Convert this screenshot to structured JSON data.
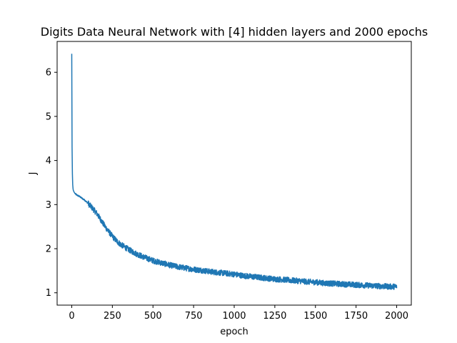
{
  "chart_data": {
    "type": "line",
    "title": "Digits Data Neural Network with [4] hidden layers and 2000 epochs",
    "xlabel": "epoch",
    "ylabel": "J",
    "xlim": [
      -90,
      2090
    ],
    "ylim": [
      0.72,
      6.7
    ],
    "xticks": [
      0,
      250,
      500,
      750,
      1000,
      1250,
      1500,
      1750,
      2000
    ],
    "yticks": [
      1,
      2,
      3,
      4,
      5,
      6
    ],
    "grid": false,
    "legend": "none",
    "line_color": "#1f77b4",
    "series": [
      {
        "x": [
          0,
          2,
          4,
          6,
          8,
          10,
          15,
          20,
          30,
          40,
          50,
          60,
          80,
          100,
          120,
          150,
          175,
          200,
          225,
          250,
          275,
          300,
          350,
          400,
          450,
          500,
          550,
          600,
          650,
          700,
          750,
          800,
          850,
          900,
          950,
          1000,
          1050,
          1100,
          1150,
          1200,
          1250,
          1300,
          1350,
          1400,
          1450,
          1500,
          1550,
          1600,
          1650,
          1700,
          1750,
          1800,
          1850,
          1900,
          1950,
          2000
        ],
        "values": [
          6.42,
          4.3,
          3.7,
          3.45,
          3.36,
          3.32,
          3.28,
          3.25,
          3.22,
          3.2,
          3.18,
          3.15,
          3.1,
          3.03,
          2.95,
          2.82,
          2.68,
          2.53,
          2.4,
          2.28,
          2.18,
          2.1,
          1.98,
          1.88,
          1.8,
          1.73,
          1.68,
          1.63,
          1.59,
          1.56,
          1.53,
          1.51,
          1.48,
          1.46,
          1.44,
          1.42,
          1.39,
          1.37,
          1.35,
          1.33,
          1.31,
          1.3,
          1.28,
          1.27,
          1.25,
          1.24,
          1.22,
          1.21,
          1.2,
          1.19,
          1.18,
          1.17,
          1.16,
          1.15,
          1.14,
          1.14
        ]
      }
    ]
  }
}
